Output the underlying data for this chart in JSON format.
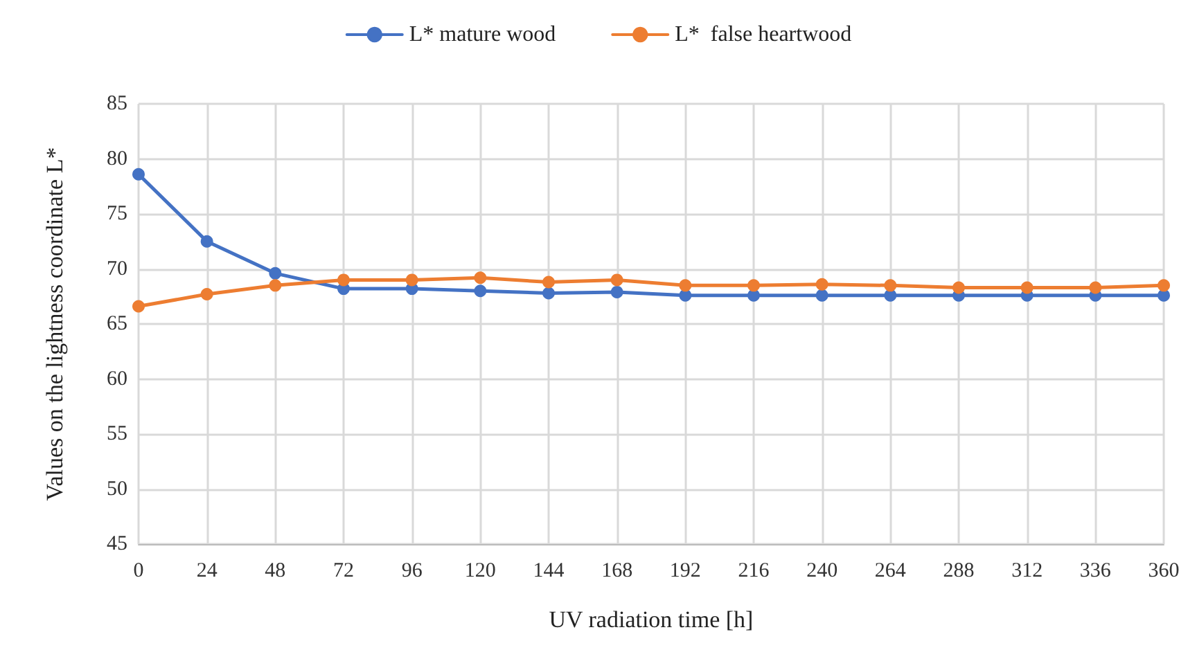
{
  "chart_data": {
    "type": "line",
    "xlabel": "UV radiation time [h]",
    "ylabel": "Values on the lightness coordinate L*",
    "categories": [
      "0",
      "24",
      "48",
      "72",
      "96",
      "120",
      "144",
      "168",
      "192",
      "216",
      "240",
      "264",
      "288",
      "312",
      "336",
      "360"
    ],
    "series": [
      {
        "name": "L* mature wood",
        "color": "#4472c4",
        "values": [
          78.6,
          72.5,
          69.6,
          68.2,
          68.2,
          68.0,
          67.8,
          67.9,
          67.6,
          67.6,
          67.6,
          67.6,
          67.6,
          67.6,
          67.6,
          67.6
        ]
      },
      {
        "name": "L*  false heartwood",
        "color": "#ed7d31",
        "values": [
          66.6,
          67.7,
          68.5,
          69.0,
          69.0,
          69.2,
          68.8,
          69.0,
          68.5,
          68.5,
          68.6,
          68.5,
          68.3,
          68.3,
          68.3,
          68.5
        ]
      }
    ],
    "ylim": [
      45,
      85
    ],
    "yticks": [
      45,
      50,
      55,
      60,
      65,
      70,
      75,
      80,
      85
    ],
    "grid": true,
    "legend": "top",
    "marker": "circle",
    "line_style": "solid"
  }
}
